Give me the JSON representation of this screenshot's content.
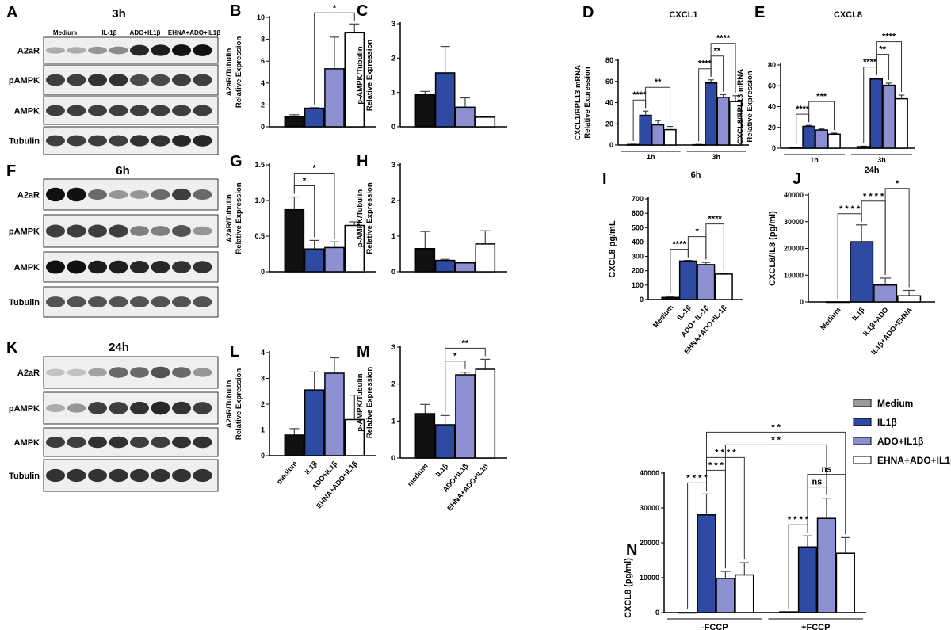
{
  "colors": {
    "medium": "#111111",
    "il1b": "#2f4aa3",
    "ado": "#8c8fd0",
    "ehna": "#ffffff",
    "legend_medium": "#9a9a9a"
  },
  "blots": [
    {
      "panel": "A",
      "title": "3h",
      "headers": [
        "Medium",
        "IL-1β",
        "ADO+IL1β",
        "EHNA+ADO+IL1β"
      ],
      "rows": [
        "A2aR",
        "pAMPK",
        "AMPK",
        "Tubulin"
      ]
    },
    {
      "panel": "F",
      "title": "6h",
      "headers": [],
      "rows": [
        "A2aR",
        "pAMPK",
        "AMPK",
        "Tubulin"
      ]
    },
    {
      "panel": "K",
      "title": "24h",
      "headers": [],
      "rows": [
        "A2aR",
        "pAMPK",
        "AMPK",
        "Tubulin"
      ]
    }
  ],
  "chart_data": [
    {
      "panel": "B",
      "type": "bar",
      "title": "",
      "ylabel": [
        "A2aR/Tubulin",
        "Relative Expression"
      ],
      "ylim": [
        0,
        10
      ],
      "yticks": [
        0,
        2,
        4,
        6,
        8,
        10
      ],
      "categories": [],
      "groups": [
        {
          "label": "",
          "values": [
            0.9,
            1.7,
            5.3,
            8.6
          ],
          "errors": [
            0.2,
            0.05,
            2.9,
            0.8
          ]
        }
      ],
      "sig": [
        [
          1,
          3,
          "*"
        ]
      ]
    },
    {
      "panel": "C",
      "type": "bar",
      "title": "",
      "ylabel": [
        "p-AMPK/Tubulin",
        "Relative Expression"
      ],
      "ylim": [
        0,
        3
      ],
      "yticks": [
        0,
        1,
        2,
        3
      ],
      "categories": [],
      "groups": [
        {
          "label": "",
          "values": [
            0.93,
            1.57,
            0.57,
            0.28
          ],
          "errors": [
            0.1,
            0.77,
            0.27,
            0.02
          ]
        }
      ],
      "sig": []
    },
    {
      "panel": "D",
      "type": "bar",
      "title": "CXCL1",
      "ylabel": [
        "CXCL1/RPL13 mRNA",
        "Relative Expression"
      ],
      "ylim": [
        0,
        80
      ],
      "yticks": [
        0,
        20,
        40,
        60,
        80
      ],
      "categories": [],
      "groups": [
        {
          "label": "1h",
          "values": [
            0.5,
            28,
            19,
            14.5
          ],
          "errors": [
            0.3,
            4,
            4,
            3
          ]
        },
        {
          "label": "3h",
          "values": [
            0.3,
            58.5,
            45,
            41
          ],
          "errors": [
            0.3,
            3,
            2.5,
            5.5
          ]
        }
      ],
      "sig": [
        [
          0,
          1,
          "****"
        ],
        [
          1,
          3,
          "**"
        ],
        [
          4,
          5,
          "****"
        ],
        [
          5,
          6,
          "**"
        ],
        [
          5,
          7,
          "****"
        ]
      ]
    },
    {
      "panel": "E",
      "type": "bar",
      "title": "CXCL8",
      "ylabel": [
        "CXCL8/RPL13 mRNA",
        "Relative Expression"
      ],
      "ylim": [
        0,
        80
      ],
      "yticks": [
        0,
        20,
        40,
        60,
        80
      ],
      "categories": [],
      "groups": [
        {
          "label": "1h",
          "values": [
            0.5,
            21,
            17.5,
            13.5
          ],
          "errors": [
            0.3,
            1,
            1,
            1
          ]
        },
        {
          "label": "3h",
          "values": [
            1.5,
            66.5,
            60.5,
            47.5
          ],
          "errors": [
            0.5,
            0.8,
            2,
            3.5
          ]
        }
      ],
      "sig": [
        [
          0,
          1,
          "****"
        ],
        [
          1,
          3,
          "***"
        ],
        [
          4,
          5,
          "****"
        ],
        [
          5,
          6,
          "**"
        ],
        [
          5,
          7,
          "****"
        ]
      ]
    },
    {
      "panel": "G",
      "type": "bar",
      "title": "",
      "ylabel": [
        "A2aR/Tubulin",
        "Relative Expression"
      ],
      "ylim": [
        0,
        1.5
      ],
      "yticks": [
        "0",
        "0.5",
        "1.0",
        "1.5"
      ],
      "categories": [],
      "groups": [
        {
          "label": "",
          "values": [
            0.87,
            0.32,
            0.34,
            0.65
          ],
          "errors": [
            0.18,
            0.12,
            0.08,
            0.05
          ]
        }
      ],
      "sig": [
        [
          0,
          1,
          "*"
        ],
        [
          0,
          2,
          "*"
        ]
      ]
    },
    {
      "panel": "H",
      "type": "bar",
      "title": "",
      "ylabel": [
        "p-AMPK/Tubulin",
        "Relative Expression"
      ],
      "ylim": [
        0,
        3
      ],
      "yticks": [
        0,
        1,
        2,
        3
      ],
      "categories": [],
      "groups": [
        {
          "label": "",
          "values": [
            0.65,
            0.32,
            0.25,
            0.78
          ],
          "errors": [
            0.48,
            0.03,
            0.02,
            0.37
          ]
        }
      ],
      "sig": []
    },
    {
      "panel": "I",
      "type": "bar",
      "title": "6h",
      "ylabel": [
        "CXCL8 pg/mL"
      ],
      "ylim": [
        0,
        700
      ],
      "yticks": [
        0,
        100,
        200,
        300,
        400,
        500,
        600,
        700
      ],
      "categories": [
        "Medium",
        "IL-1β",
        "ADO+ IL-1β",
        "EHNA+ADO+IL-1β"
      ],
      "groups": [
        {
          "label": "",
          "values": [
            15,
            268,
            243,
            177
          ],
          "errors": [
            3,
            4,
            15,
            5
          ]
        }
      ],
      "sig": [
        [
          0,
          1,
          "****"
        ],
        [
          1,
          2,
          "*"
        ],
        [
          2,
          3,
          "****"
        ]
      ]
    },
    {
      "panel": "J",
      "type": "bar",
      "title": "24h",
      "ylabel": [
        "CXCL8/IL8 (pg/ml)"
      ],
      "ylim": [
        0,
        40000
      ],
      "yticks": [
        0,
        10000,
        20000,
        30000,
        40000
      ],
      "categories": [
        "Medium",
        "IL1β",
        "IL1β+ADO",
        "IL1β+ADO+EHNA"
      ],
      "groups": [
        {
          "label": "",
          "values": [
            0,
            22500,
            6300,
            2300
          ],
          "errors": [
            0,
            6300,
            2600,
            2000
          ]
        }
      ],
      "sig": [
        [
          0,
          1,
          "* * * *"
        ],
        [
          1,
          2,
          "* * * *"
        ],
        [
          2,
          3,
          "*"
        ]
      ]
    },
    {
      "panel": "L",
      "type": "bar",
      "title": "",
      "ylabel": [
        "A2aR/Tubulin",
        "Relative Expression"
      ],
      "ylim": [
        0,
        4
      ],
      "yticks": [
        0,
        1,
        2,
        3,
        4
      ],
      "categories": [
        "medium",
        "IL1β",
        "ADO+IL1β",
        "EHNA+ADO+IL1β"
      ],
      "groups": [
        {
          "label": "",
          "values": [
            0.8,
            2.55,
            3.2,
            1.4
          ],
          "errors": [
            0.25,
            0.7,
            0.6,
            0.95
          ]
        }
      ],
      "sig": []
    },
    {
      "panel": "M",
      "type": "bar",
      "title": "",
      "ylabel": [
        "p-AMPK/Tubulin",
        "Relative Expression"
      ],
      "ylim": [
        0,
        3
      ],
      "yticks": [
        0,
        1,
        2,
        3
      ],
      "categories": [
        "medium",
        "IL1β",
        "ADO+IL1β",
        "EHNA+ADO+IL1β"
      ],
      "groups": [
        {
          "label": "",
          "values": [
            1.2,
            0.9,
            2.25,
            2.4
          ],
          "errors": [
            0.25,
            0.25,
            0.07,
            0.27
          ]
        }
      ],
      "sig": [
        [
          1,
          2,
          "*"
        ],
        [
          1,
          3,
          "**"
        ]
      ]
    },
    {
      "panel": "N",
      "type": "bar",
      "title": "",
      "ylabel": [
        "CXCL8 (pg/ml)"
      ],
      "ylim": [
        0,
        40000
      ],
      "yticks": [
        0,
        10000,
        20000,
        30000,
        40000
      ],
      "categories": [],
      "groups": [
        {
          "label": "-FCCP",
          "values": [
            0,
            28000,
            9800,
            10800
          ],
          "errors": [
            0,
            6000,
            2000,
            3500
          ]
        },
        {
          "label": "+FCCP",
          "values": [
            200,
            18800,
            27000,
            17000
          ],
          "errors": [
            0,
            3200,
            5800,
            4500
          ]
        }
      ],
      "legend": {
        "position": "right",
        "entries": [
          "Medium",
          "IL1β",
          "ADO+IL1β",
          "EHNA+ADO+IL1β"
        ]
      },
      "sig": [
        [
          0,
          1,
          "* * * *"
        ],
        [
          1,
          2,
          "* * *"
        ],
        [
          1,
          3,
          "* * * *"
        ],
        [
          4,
          5,
          "* * * *"
        ],
        [
          5,
          6,
          "ns"
        ],
        [
          5,
          7,
          "ns"
        ],
        [
          2,
          6,
          "* *"
        ],
        [
          1,
          7,
          "* *"
        ]
      ]
    }
  ]
}
